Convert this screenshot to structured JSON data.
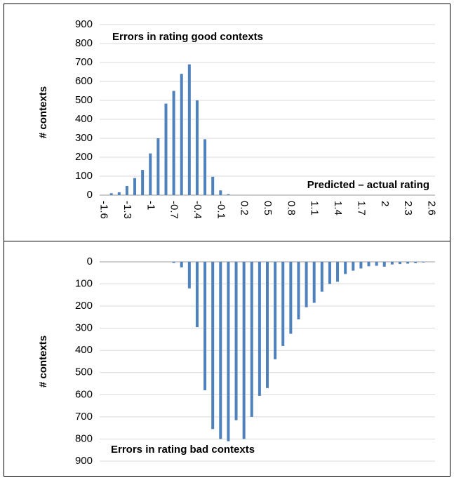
{
  "chart_data": [
    {
      "type": "bar",
      "title": "Errors in rating good contexts",
      "x_label": "Predicted – actual rating",
      "y_label": "# contexts",
      "categories": [
        "-1.6",
        null,
        null,
        "-1.3",
        null,
        null,
        "-1",
        null,
        null,
        "-0.7",
        null,
        null,
        "-0.4",
        null,
        null,
        "-0.1",
        null,
        null,
        "0.2",
        null,
        null,
        "0.5",
        null,
        null,
        "0.8",
        null,
        null,
        "1.1",
        null,
        null,
        "1.4",
        null,
        null,
        "1.7",
        null,
        null,
        "2",
        null,
        null,
        "2.3",
        null,
        null,
        "2.6"
      ],
      "values": [
        0,
        10,
        15,
        48,
        90,
        133,
        220,
        300,
        483,
        550,
        640,
        690,
        500,
        295,
        97,
        25,
        5,
        0,
        0,
        0,
        0,
        0,
        0,
        0,
        0,
        0,
        0,
        0,
        0,
        0,
        0,
        0,
        0,
        0,
        0,
        0,
        0,
        0,
        0,
        0,
        0,
        0,
        0
      ],
      "color": "#4f81bd",
      "ylim": [
        0,
        900
      ],
      "yticks": [
        0,
        100,
        200,
        300,
        400,
        500,
        600,
        700,
        800,
        900
      ],
      "grid": true
    },
    {
      "type": "bar",
      "title": "Errors in rating bad contexts",
      "y_label": "# contexts",
      "categories": [
        null,
        null,
        null,
        null,
        null,
        null,
        null,
        null,
        null,
        null,
        null,
        null,
        null,
        null,
        null,
        null,
        null,
        null,
        null,
        null,
        null,
        null,
        null,
        null,
        null,
        null,
        null,
        null,
        null,
        null,
        null,
        null,
        null,
        null,
        null,
        null,
        null,
        null,
        null,
        null,
        null,
        null,
        null
      ],
      "values": [
        0,
        0,
        0,
        0,
        0,
        0,
        0,
        0,
        0,
        5,
        25,
        120,
        295,
        580,
        755,
        800,
        810,
        715,
        800,
        700,
        605,
        570,
        440,
        380,
        325,
        260,
        205,
        185,
        135,
        100,
        90,
        55,
        40,
        30,
        20,
        18,
        22,
        12,
        10,
        8,
        6,
        3,
        0
      ],
      "color": "#4f81bd",
      "ylim": [
        0,
        900
      ],
      "y_reversed": true,
      "yticks": [
        0,
        100,
        200,
        300,
        400,
        500,
        600,
        700,
        800,
        900
      ],
      "grid": true
    }
  ]
}
